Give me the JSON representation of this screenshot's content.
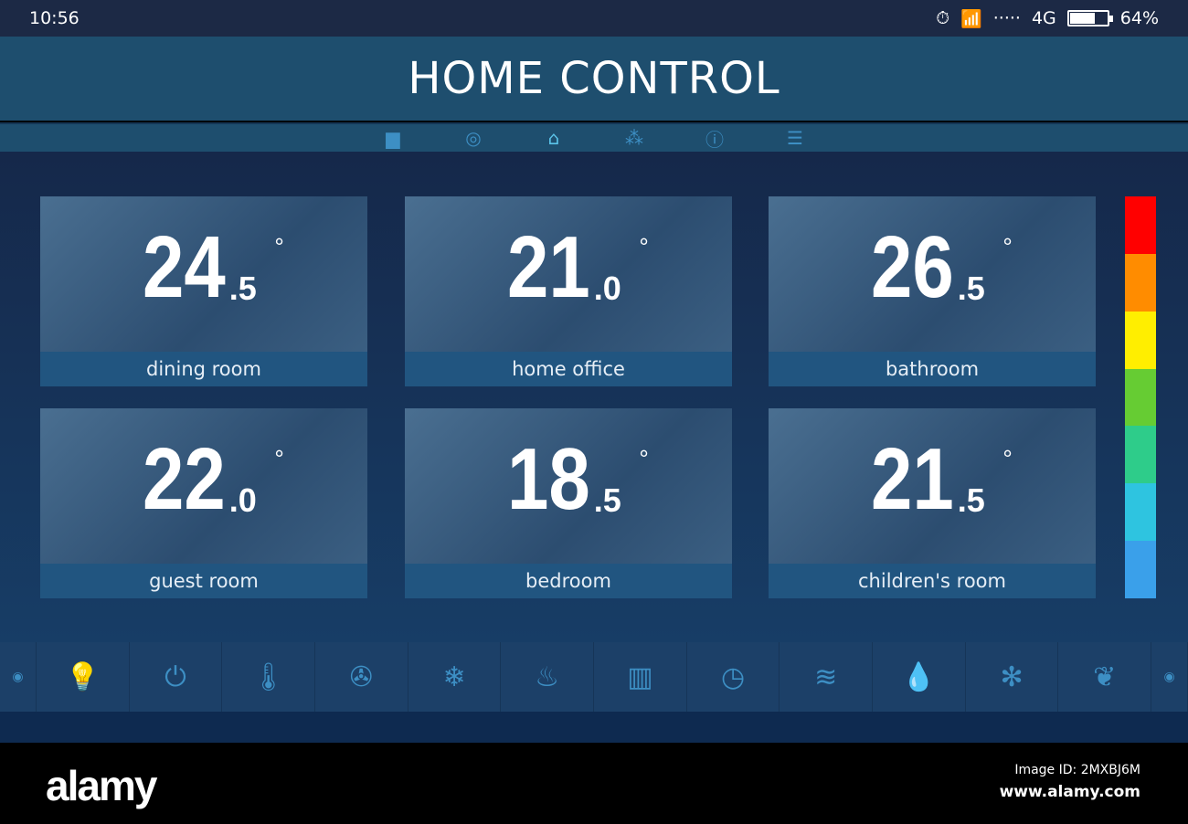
{
  "status": {
    "time": "10:56",
    "network": "4G",
    "battery_percent": 64,
    "battery_label": "64%"
  },
  "header": {
    "title": "HOME CONTROL"
  },
  "nav": {
    "items": [
      {
        "icon": "folder-icon"
      },
      {
        "icon": "target-icon"
      },
      {
        "icon": "home-icon",
        "active": true
      },
      {
        "icon": "network-icon"
      },
      {
        "icon": "alert-icon"
      },
      {
        "icon": "list-icon"
      }
    ]
  },
  "rooms": [
    {
      "name": "dining room",
      "temp_int": "24",
      "temp_dec": ".5",
      "deg": "°"
    },
    {
      "name": "home office",
      "temp_int": "21",
      "temp_dec": ".0",
      "deg": "°"
    },
    {
      "name": "bathroom",
      "temp_int": "26",
      "temp_dec": ".5",
      "deg": "°"
    },
    {
      "name": "guest room",
      "temp_int": "22",
      "temp_dec": ".0",
      "deg": "°"
    },
    {
      "name": "bedroom",
      "temp_int": "18",
      "temp_dec": ".5",
      "deg": "°"
    },
    {
      "name": "children's room",
      "temp_int": "21",
      "temp_dec": ".5",
      "deg": "°"
    }
  ],
  "temperature_scale_colors": [
    "#ff0000",
    "#ff8c00",
    "#ffee00",
    "#66cc33",
    "#2ecc8a",
    "#2ec4e0",
    "#3aa0ea"
  ],
  "tools": [
    {
      "icon": "lightbulb-icon",
      "glyph": "💡"
    },
    {
      "icon": "switch-icon",
      "glyph": "⏻"
    },
    {
      "icon": "thermostat-sliders-icon",
      "glyph": "🌡"
    },
    {
      "icon": "fan-icon",
      "glyph": "✇"
    },
    {
      "icon": "air-conditioning-icon",
      "glyph": "❄"
    },
    {
      "icon": "floor-heating-icon",
      "glyph": "♨"
    },
    {
      "icon": "radiator-icon",
      "glyph": "▥"
    },
    {
      "icon": "clock-icon",
      "glyph": "◷"
    },
    {
      "icon": "heater-icon",
      "glyph": "≋"
    },
    {
      "icon": "humidity-icon",
      "glyph": "💧"
    },
    {
      "icon": "climate-mode-icon",
      "glyph": "✻"
    },
    {
      "icon": "eco-leaf-icon",
      "glyph": "❦"
    }
  ],
  "footer": {
    "logo": "alamy",
    "image_id": "Image ID: 2MXBJ6M",
    "url": "www.alamy.com"
  }
}
